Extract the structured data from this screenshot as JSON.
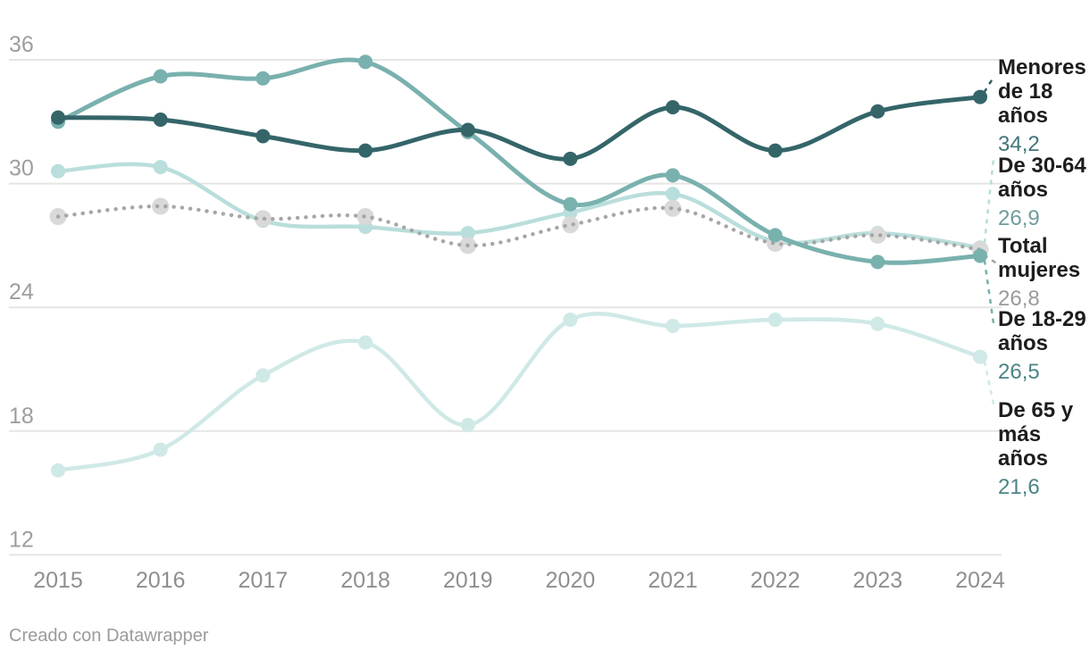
{
  "chart_data": {
    "type": "line",
    "categories": [
      "2015",
      "2016",
      "2017",
      "2018",
      "2019",
      "2020",
      "2021",
      "2022",
      "2023",
      "2024"
    ],
    "y_ticks": [
      36,
      30,
      24,
      18,
      12
    ],
    "y_axis": {
      "min": 12,
      "max": 36,
      "grid": true
    },
    "legend_position": "right-labels",
    "series": [
      {
        "name": "Menores de 18 años",
        "display_value": "34,2",
        "color": "#346569",
        "value_color": "#41767a",
        "style": "solid",
        "values": [
          33.2,
          33.1,
          32.3,
          31.6,
          32.6,
          31.2,
          33.7,
          31.6,
          33.5,
          34.2
        ]
      },
      {
        "name": "De 30-64 años",
        "display_value": "26,9",
        "color": "#b9dedb",
        "value_color": "#6f9c9c",
        "style": "solid",
        "values": [
          30.6,
          30.8,
          28.2,
          27.9,
          27.6,
          28.6,
          29.5,
          27.2,
          27.6,
          26.9
        ]
      },
      {
        "name": "Total mujeres",
        "display_value": "26,8",
        "color": "#a6a6a6",
        "marker_color": "#d9d9d9",
        "value_color": "#9b9b9b",
        "style": "dotted",
        "values": [
          28.4,
          28.9,
          28.3,
          28.4,
          27.0,
          28.0,
          28.8,
          27.1,
          27.5,
          26.8
        ]
      },
      {
        "name": "De 18-29 años",
        "display_value": "26,5",
        "color": "#79b1ae",
        "value_color": "#4c8487",
        "style": "solid",
        "values": [
          33.0,
          35.2,
          35.1,
          35.9,
          32.5,
          29.0,
          30.4,
          27.5,
          26.2,
          26.5
        ]
      },
      {
        "name": "De 65 y más años",
        "display_value": "21,6",
        "color": "#cfe9e7",
        "value_color": "#4c8487",
        "style": "solid",
        "values": [
          16.1,
          17.1,
          20.7,
          22.3,
          18.3,
          23.4,
          23.1,
          23.4,
          23.2,
          21.6
        ]
      }
    ],
    "axis_text_colors": {
      "y_ticks": "#9e9e9e",
      "x_labels": "#8f8f8f"
    }
  },
  "footer": {
    "credit": "Creado con Datawrapper"
  }
}
